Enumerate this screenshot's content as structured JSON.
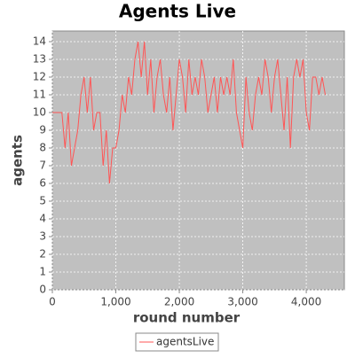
{
  "chart_data": {
    "type": "line",
    "title": "Agents Live",
    "xlabel": "round number",
    "ylabel": "agents",
    "x": [
      0,
      50,
      100,
      150,
      200,
      250,
      300,
      350,
      400,
      450,
      500,
      550,
      600,
      650,
      700,
      750,
      800,
      850,
      900,
      950,
      1000,
      1050,
      1100,
      1150,
      1200,
      1250,
      1300,
      1350,
      1400,
      1450,
      1500,
      1550,
      1600,
      1650,
      1700,
      1750,
      1800,
      1850,
      1900,
      1950,
      2000,
      2050,
      2100,
      2150,
      2200,
      2250,
      2300,
      2350,
      2400,
      2450,
      2500,
      2550,
      2600,
      2650,
      2700,
      2750,
      2800,
      2850,
      2900,
      2950,
      3000,
      3050,
      3100,
      3150,
      3200,
      3250,
      3300,
      3350,
      3400,
      3450,
      3500,
      3550,
      3600,
      3650,
      3700,
      3750,
      3800,
      3850,
      3900,
      3950,
      4000,
      4050,
      4100,
      4150,
      4200,
      4250,
      4300
    ],
    "series": [
      {
        "name": "agentsLive",
        "color": "#ff5555",
        "values": [
          10,
          10,
          10,
          10,
          8,
          10,
          7,
          8,
          9,
          11,
          12,
          10,
          12,
          9,
          10,
          10,
          7,
          9,
          6,
          8,
          8,
          9,
          11,
          10,
          12,
          11,
          13,
          14,
          12,
          14,
          11,
          13,
          10,
          12,
          13,
          11,
          10,
          12,
          9,
          11,
          13,
          12,
          10,
          13,
          11,
          12,
          11,
          13,
          12,
          10,
          11,
          12,
          10,
          12,
          11,
          12,
          11,
          13,
          10,
          9,
          8,
          12,
          10,
          9,
          11,
          12,
          11,
          13,
          12,
          10,
          12,
          13,
          11,
          9,
          12,
          8,
          12,
          13,
          12,
          13,
          10,
          9,
          12,
          12,
          11,
          12,
          11
        ]
      }
    ],
    "xlim": [
      0,
      4600
    ],
    "ylim": [
      0,
      14.6
    ],
    "xticks": [
      0,
      {
        "value": 1000,
        "label": "1,000"
      },
      {
        "value": 2000,
        "label": "2,000"
      },
      {
        "value": 3000,
        "label": "3,000"
      },
      {
        "value": 4000,
        "label": "4,000"
      }
    ],
    "yticks": [
      0,
      1,
      2,
      3,
      4,
      5,
      6,
      7,
      8,
      9,
      10,
      11,
      12,
      13,
      14
    ],
    "grid": true,
    "legend": "bottom"
  }
}
